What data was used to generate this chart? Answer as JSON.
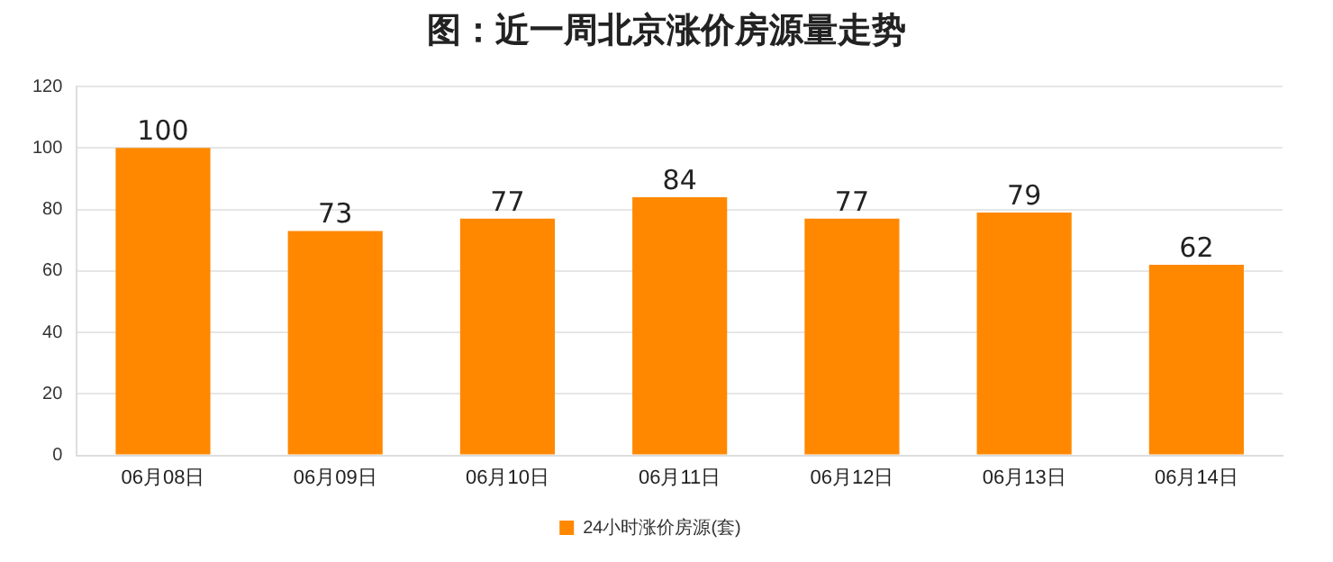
{
  "chart_data": {
    "type": "bar",
    "title": "图：近一周北京涨价房源量走势",
    "categories": [
      "06月08日",
      "06月09日",
      "06月10日",
      "06月11日",
      "06月12日",
      "06月13日",
      "06月14日"
    ],
    "series": [
      {
        "name": "24小时涨价房源(套)",
        "color": "#ff8800",
        "values": [
          100,
          73,
          77,
          84,
          77,
          79,
          62
        ]
      }
    ],
    "ylim": [
      0,
      120
    ],
    "yticks": [
      0,
      20,
      40,
      60,
      80,
      100,
      120
    ],
    "grid": "y",
    "legend": "bottom",
    "data_labels": true
  }
}
